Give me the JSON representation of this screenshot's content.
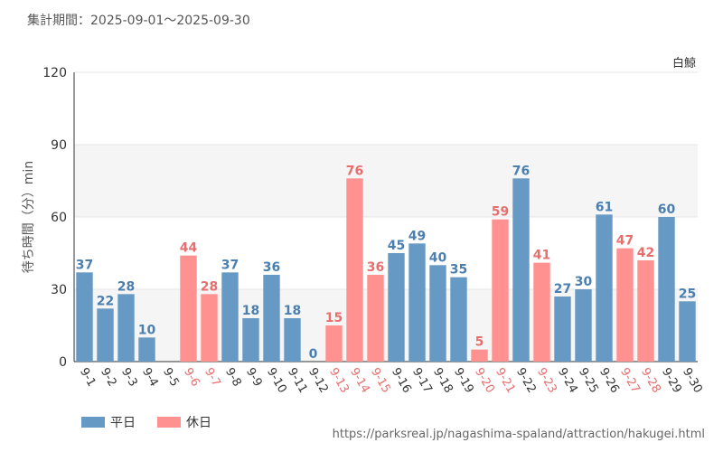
{
  "header": {
    "period": "集計期間：2025-09-01～2025-09-30"
  },
  "chart_data": {
    "type": "bar",
    "series_name": "白鯨",
    "ylabel": "待ち時間（分）min",
    "ylim": [
      0,
      120
    ],
    "yticks": [
      0,
      30,
      60,
      90,
      120
    ],
    "colors": {
      "weekday": "#6699c4",
      "holiday": "#ff9191",
      "weekday_text": "#4a7fb0",
      "holiday_text": "#e86e6e"
    },
    "categories": [
      "9-1",
      "9-2",
      "9-3",
      "9-4",
      "9-5",
      "9-6",
      "9-7",
      "9-8",
      "9-9",
      "9-10",
      "9-11",
      "9-12",
      "9-13",
      "9-14",
      "9-15",
      "9-16",
      "9-17",
      "9-18",
      "9-19",
      "9-20",
      "9-21",
      "9-22",
      "9-23",
      "9-24",
      "9-25",
      "9-26",
      "9-27",
      "9-28",
      "9-29",
      "9-30"
    ],
    "values": [
      37,
      22,
      28,
      10,
      null,
      44,
      28,
      37,
      18,
      36,
      18,
      0,
      15,
      76,
      36,
      45,
      49,
      40,
      35,
      5,
      59,
      76,
      41,
      27,
      30,
      61,
      47,
      42,
      60,
      25
    ],
    "day_types": [
      "weekday",
      "weekday",
      "weekday",
      "weekday",
      "weekday",
      "holiday",
      "holiday",
      "weekday",
      "weekday",
      "weekday",
      "weekday",
      "weekday",
      "holiday",
      "holiday",
      "holiday",
      "weekday",
      "weekday",
      "weekday",
      "weekday",
      "holiday",
      "holiday",
      "weekday",
      "holiday",
      "weekday",
      "weekday",
      "weekday",
      "holiday",
      "holiday",
      "weekday",
      "weekday"
    ]
  },
  "legend": [
    {
      "label": "平日",
      "color": "#6699c4"
    },
    {
      "label": "休日",
      "color": "#ff9191"
    }
  ],
  "source": "https://parksreal.jp/nagashima-spaland/attraction/hakugei.html"
}
